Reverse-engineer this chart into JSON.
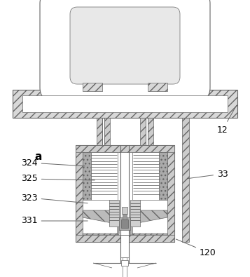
{
  "bg": "white",
  "lc": "#666666",
  "hatch_fc": "#cccccc",
  "dark_fc": "#aaaaaa",
  "coil_fc": "#bbbbbb",
  "dot_fc": "#999999",
  "lw_thin": 0.5,
  "lw_med": 0.8,
  "lw_thick": 1.2,
  "label_fs": 9,
  "bold_fs": 11
}
